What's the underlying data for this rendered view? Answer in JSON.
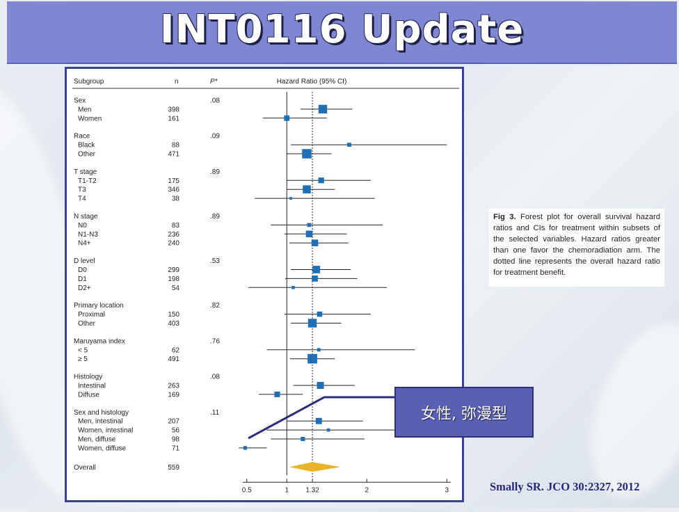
{
  "slide": {
    "title": "INT0116 Update",
    "callout": "女性, 弥漫型",
    "reference": "Smally SR. JCO 30:2327, 2012",
    "caption": {
      "figure_label": "Fig 3.",
      "text": "Forest plot for overall survival hazard ratios and CIs for treatment within subsets of the selected variables. Hazard ratios greater than one favor the chemoradiation arm. The dotted line represents the overall hazard ratio for treatment benefit."
    },
    "colors": {
      "title_bar": "#7f86d2",
      "frame_border": "#3a3f9a",
      "marker": "#1f6fb5",
      "overall_diamond": "#e8b52a",
      "callout_bg": "#5a5fb2",
      "reference_text": "#24287a"
    }
  },
  "chart_data": {
    "type": "forest",
    "headers": {
      "subgroup": "Subgroup",
      "n": "n",
      "p": "P*",
      "hr": "Hazard Ratio (95% CI)"
    },
    "x_ticks": [
      0.5,
      1,
      1.32,
      2,
      3
    ],
    "x_tick_labels": [
      "0.5",
      "1",
      "1.32",
      "2",
      "3"
    ],
    "xlim": [
      0.45,
      3.05
    ],
    "reference_line": 1,
    "overall_line": 1.32,
    "groups": [
      {
        "label": "Sex",
        "p": ".08",
        "rows": [
          {
            "label": "Men",
            "n": "398",
            "hr": 1.45,
            "lo": 1.17,
            "hi": 1.82
          },
          {
            "label": "Women",
            "n": "161",
            "hr": 1.0,
            "lo": 0.7,
            "hi": 1.5
          }
        ]
      },
      {
        "label": "Race",
        "p": ".09",
        "rows": [
          {
            "label": "Black",
            "n": "88",
            "hr": 1.78,
            "lo": 1.05,
            "hi": 3.0
          },
          {
            "label": "Other",
            "n": "471",
            "hr": 1.25,
            "lo": 1.0,
            "hi": 1.56
          }
        ]
      },
      {
        "label": "T stage",
        "p": ".89",
        "rows": [
          {
            "label": "T1-T2",
            "n": "175",
            "hr": 1.43,
            "lo": 1.0,
            "hi": 2.05
          },
          {
            "label": "T3",
            "n": "346",
            "hr": 1.25,
            "lo": 1.0,
            "hi": 1.6
          },
          {
            "label": "T4",
            "n": "38",
            "hr": 1.05,
            "lo": 0.6,
            "hi": 2.1
          }
        ]
      },
      {
        "label": "N stage",
        "p": ".89",
        "rows": [
          {
            "label": "N0",
            "n": "83",
            "hr": 1.28,
            "lo": 0.8,
            "hi": 2.2
          },
          {
            "label": "N1-N3",
            "n": "236",
            "hr": 1.28,
            "lo": 0.97,
            "hi": 1.75
          },
          {
            "label": "N4+",
            "n": "240",
            "hr": 1.35,
            "lo": 1.03,
            "hi": 1.77
          }
        ]
      },
      {
        "label": "D level",
        "p": ".53",
        "rows": [
          {
            "label": "D0",
            "n": "299",
            "hr": 1.37,
            "lo": 1.05,
            "hi": 1.8
          },
          {
            "label": "D1",
            "n": "198",
            "hr": 1.35,
            "lo": 0.98,
            "hi": 1.88
          },
          {
            "label": "D2+",
            "n": "54",
            "hr": 1.08,
            "lo": 0.52,
            "hi": 2.25
          }
        ]
      },
      {
        "label": "Primary location",
        "p": ".82",
        "rows": [
          {
            "label": "Proximal",
            "n": "150",
            "hr": 1.41,
            "lo": 0.97,
            "hi": 2.05
          },
          {
            "label": "Other",
            "n": "403",
            "hr": 1.32,
            "lo": 1.05,
            "hi": 1.68
          }
        ]
      },
      {
        "label": "Maruyama index",
        "p": ".76",
        "rows": [
          {
            "label": "< 5",
            "n": "62",
            "hr": 1.4,
            "lo": 0.75,
            "hi": 2.6
          },
          {
            "label": "≥ 5",
            "n": "491",
            "hr": 1.32,
            "lo": 1.04,
            "hi": 1.6
          }
        ]
      },
      {
        "label": "Histology",
        "p": ".08",
        "rows": [
          {
            "label": "Intestinal",
            "n": "263",
            "hr": 1.42,
            "lo": 1.08,
            "hi": 1.85
          },
          {
            "label": "Diffuse",
            "n": "169",
            "hr": 0.88,
            "lo": 0.65,
            "hi": 1.2
          }
        ]
      },
      {
        "label": "Sex and histology",
        "p": ".11",
        "rows": [
          {
            "label": "Men, intestinal",
            "n": "207",
            "hr": 1.4,
            "lo": 1.0,
            "hi": 1.95
          },
          {
            "label": "Women, intestinal",
            "n": "56",
            "hr": 1.52,
            "lo": 0.75,
            "hi": 3.0
          },
          {
            "label": "Men, diffuse",
            "n": "98",
            "hr": 1.2,
            "lo": 0.8,
            "hi": 1.97
          },
          {
            "label": "Women, diffuse",
            "n": "71",
            "hr": 0.48,
            "lo": 0.4,
            "hi": 0.75
          }
        ]
      }
    ],
    "overall": {
      "label": "Overall",
      "n": "559",
      "hr": 1.32,
      "lo": 1.1,
      "hi": 1.6
    }
  }
}
